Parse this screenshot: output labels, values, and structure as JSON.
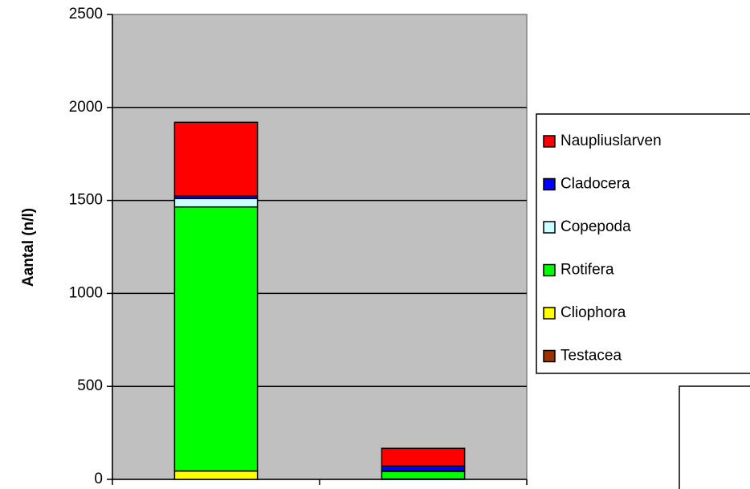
{
  "chart_data": {
    "type": "stacked_bar",
    "y_label": "Aantal (n/l)",
    "categories": [
      null,
      null
    ],
    "series": [
      {
        "name": "Testacea",
        "color": "#993300",
        "values": [
          0,
          0
        ]
      },
      {
        "name": "Cliophora",
        "color": "#ffff00",
        "values": [
          45,
          2
        ]
      },
      {
        "name": "Rotifera",
        "color": "#00ff00",
        "values": [
          1420,
          40
        ]
      },
      {
        "name": "Copepoda",
        "color": "#ccffff",
        "values": [
          45,
          5
        ]
      },
      {
        "name": "Cladocera",
        "color": "#0000ff",
        "values": [
          15,
          25
        ]
      },
      {
        "name": "Naupliuslarven",
        "color": "#ff0000",
        "values": [
          395,
          95
        ]
      }
    ],
    "ylim": [
      0,
      2500
    ],
    "yticks": [
      0,
      500,
      1000,
      1500,
      2000,
      2500
    ],
    "grid": true,
    "legend": "right"
  }
}
